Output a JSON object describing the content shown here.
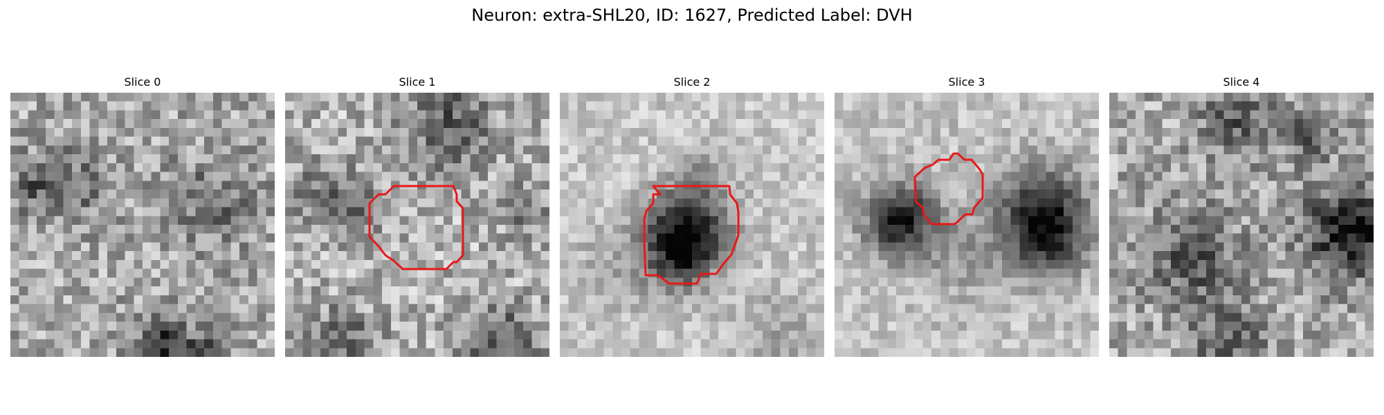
{
  "figure": {
    "title": "Neuron: extra-SHL20, ID: 1627, Predicted Label: DVH"
  },
  "colors": {
    "background": "#ffffff",
    "contour": "#e81818",
    "colormap": "grayscale"
  },
  "panels": [
    {
      "label": "Slice 0",
      "has_contour": false
    },
    {
      "label": "Slice 1",
      "has_contour": true
    },
    {
      "label": "Slice 2",
      "has_contour": true
    },
    {
      "label": "Slice 3",
      "has_contour": true
    },
    {
      "label": "Slice 4",
      "has_contour": false
    }
  ]
}
